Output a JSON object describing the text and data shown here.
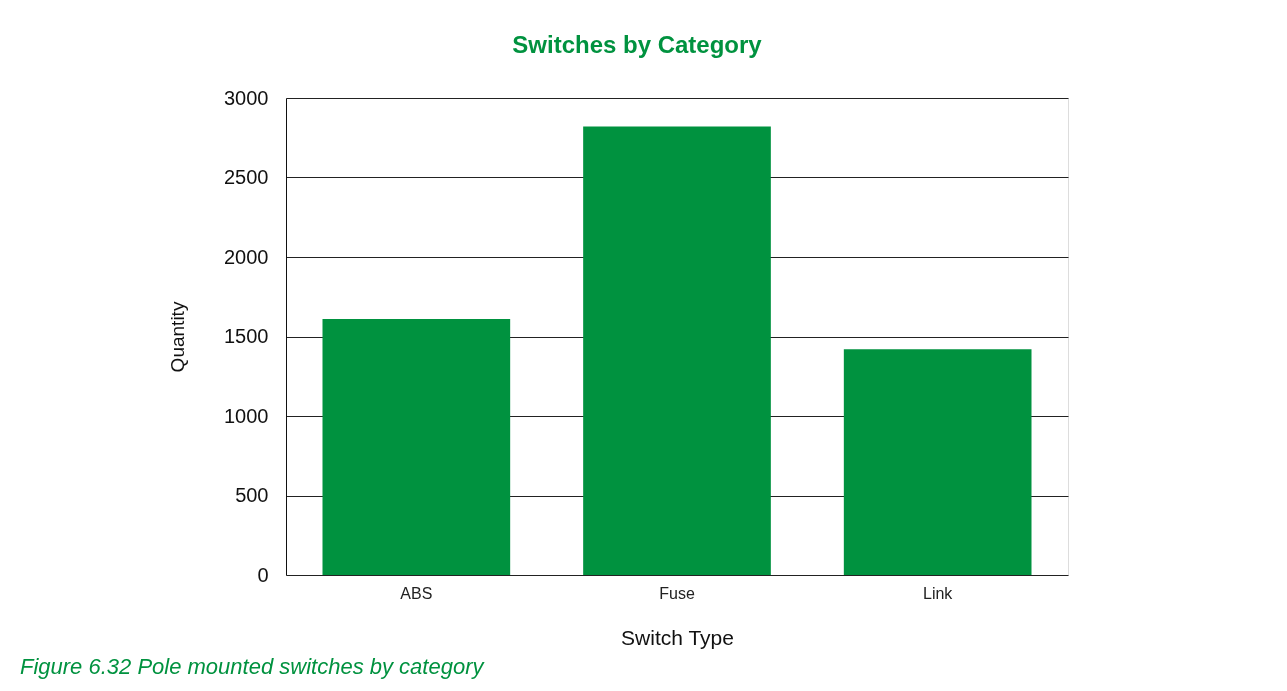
{
  "chart_data": {
    "type": "bar",
    "title": "Switches by Category",
    "xlabel": "Switch Type",
    "ylabel": "Quantity",
    "categories": [
      "ABS",
      "Fuse",
      "Link"
    ],
    "values": [
      1610,
      2820,
      1420
    ],
    "color": "#00923f",
    "ylim": [
      0,
      3000
    ],
    "yticks": [
      0,
      500,
      1000,
      1500,
      2000,
      2500,
      3000
    ],
    "grid": "y",
    "annotations": [
      "Figure 6.32  Pole mounted switches by category"
    ]
  }
}
